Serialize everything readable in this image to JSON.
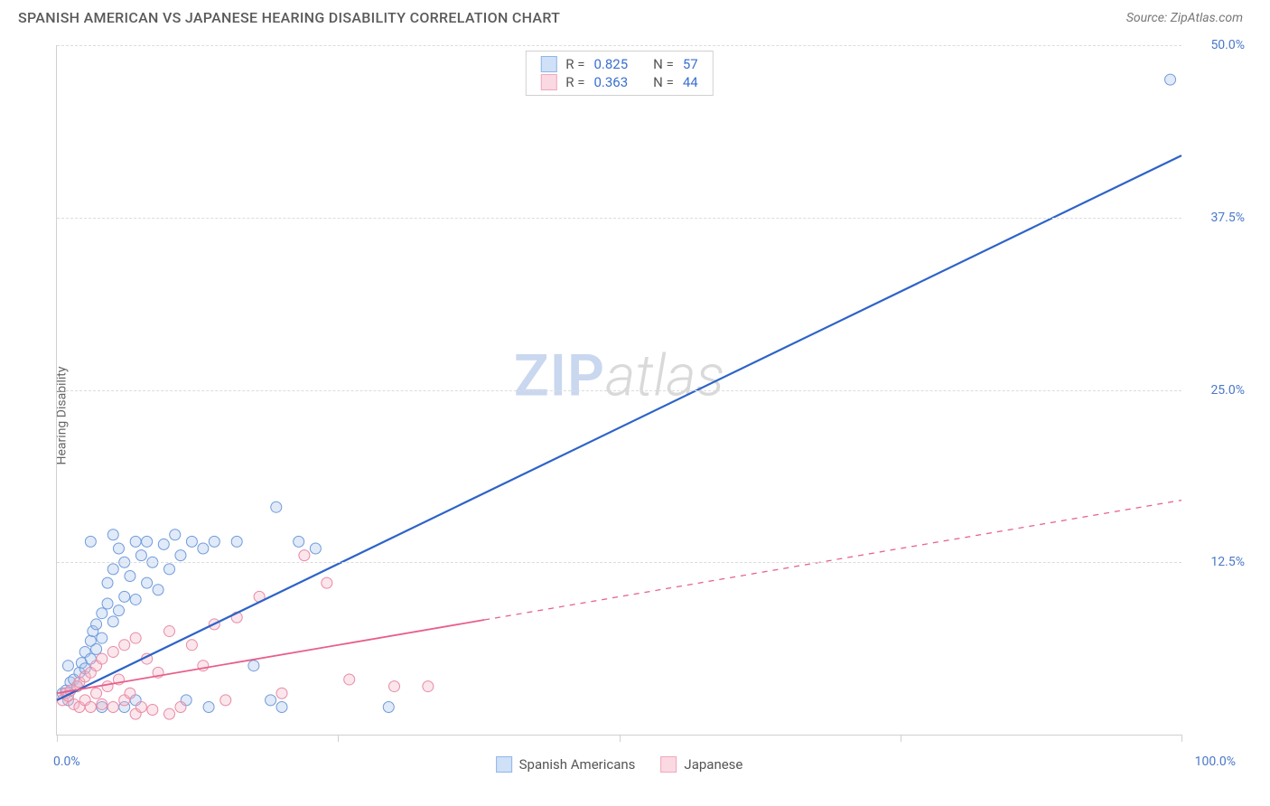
{
  "title": "SPANISH AMERICAN VS JAPANESE HEARING DISABILITY CORRELATION CHART",
  "source_prefix": "Source: ",
  "source_name": "ZipAtlas.com",
  "ylabel": "Hearing Disability",
  "watermark_zip": "ZIP",
  "watermark_atlas": "atlas",
  "chart": {
    "type": "scatter",
    "xlim": [
      0,
      100
    ],
    "ylim": [
      0,
      50
    ],
    "y_ticks": [
      12.5,
      25.0,
      37.5,
      50.0
    ],
    "y_tick_labels": [
      "12.5%",
      "25.0%",
      "37.5%",
      "50.0%"
    ],
    "x_ticks": [
      0,
      25,
      50,
      75,
      100
    ],
    "x_min_label": "0.0%",
    "x_max_label": "100.0%",
    "background_color": "#ffffff",
    "grid_color": "#dcdcdc",
    "axis_color": "#d0d0d0",
    "tick_label_color": "#4a78c8",
    "marker_radius": 6,
    "marker_stroke_width": 1,
    "marker_fill_opacity": 0.35,
    "series": [
      {
        "name": "Spanish Americans",
        "color_fill": "#a9c4ec",
        "color_stroke": "#6f9bdc",
        "swatch_fill": "#cfe0f7",
        "swatch_border": "#8fb5e8",
        "R": "0.825",
        "N": "57",
        "regression": {
          "x1": 0,
          "y1": 2.5,
          "x2": 100,
          "y2": 42.0,
          "solid_to_x": 100,
          "stroke": "#2d63c8",
          "width": 2.2
        },
        "points": [
          [
            0.5,
            3.0
          ],
          [
            0.8,
            3.2
          ],
          [
            1.0,
            2.5
          ],
          [
            1.2,
            3.8
          ],
          [
            1.5,
            4.0
          ],
          [
            1.8,
            3.5
          ],
          [
            1.0,
            5.0
          ],
          [
            2.0,
            4.5
          ],
          [
            2.2,
            5.2
          ],
          [
            2.5,
            4.8
          ],
          [
            2.5,
            6.0
          ],
          [
            3.0,
            5.5
          ],
          [
            3.0,
            6.8
          ],
          [
            3.2,
            7.5
          ],
          [
            3.5,
            6.2
          ],
          [
            3.5,
            8.0
          ],
          [
            4.0,
            7.0
          ],
          [
            4.0,
            8.8
          ],
          [
            4.5,
            9.5
          ],
          [
            4.5,
            11.0
          ],
          [
            5.0,
            8.2
          ],
          [
            5.0,
            12.0
          ],
          [
            5.5,
            9.0
          ],
          [
            5.5,
            13.5
          ],
          [
            6.0,
            10.0
          ],
          [
            6.0,
            12.5
          ],
          [
            6.5,
            11.5
          ],
          [
            7.0,
            9.8
          ],
          [
            7.0,
            14.0
          ],
          [
            7.5,
            13.0
          ],
          [
            8.0,
            11.0
          ],
          [
            8.5,
            12.5
          ],
          [
            9.0,
            10.5
          ],
          [
            9.5,
            13.8
          ],
          [
            10.0,
            12.0
          ],
          [
            10.5,
            14.5
          ],
          [
            11.0,
            13.0
          ],
          [
            12.0,
            14.0
          ],
          [
            13.0,
            13.5
          ],
          [
            14.0,
            14.0
          ],
          [
            3.0,
            14.0
          ],
          [
            5.0,
            14.5
          ],
          [
            8.0,
            14.0
          ],
          [
            16.0,
            14.0
          ],
          [
            17.5,
            5.0
          ],
          [
            19.0,
            2.5
          ],
          [
            19.5,
            16.5
          ],
          [
            20.0,
            2.0
          ],
          [
            21.5,
            14.0
          ],
          [
            23.0,
            13.5
          ],
          [
            29.5,
            2.0
          ],
          [
            11.5,
            2.5
          ],
          [
            13.5,
            2.0
          ],
          [
            7.0,
            2.5
          ],
          [
            6.0,
            2.0
          ],
          [
            99.0,
            47.5
          ],
          [
            4.0,
            2.0
          ]
        ]
      },
      {
        "name": "Japanese",
        "color_fill": "#f4b8c8",
        "color_stroke": "#e88aa5",
        "swatch_fill": "#fbd9e2",
        "swatch_border": "#f0a7bc",
        "R": "0.363",
        "N": "44",
        "regression": {
          "x1": 0,
          "y1": 3.0,
          "x2": 100,
          "y2": 17.0,
          "solid_to_x": 38,
          "stroke": "#e75f8a",
          "width": 1.8
        },
        "points": [
          [
            0.5,
            2.5
          ],
          [
            0.8,
            3.0
          ],
          [
            1.0,
            2.8
          ],
          [
            1.2,
            3.2
          ],
          [
            1.5,
            2.2
          ],
          [
            1.8,
            3.5
          ],
          [
            2.0,
            2.0
          ],
          [
            2.0,
            3.8
          ],
          [
            2.5,
            2.5
          ],
          [
            2.5,
            4.2
          ],
          [
            3.0,
            2.0
          ],
          [
            3.0,
            4.5
          ],
          [
            3.5,
            3.0
          ],
          [
            3.5,
            5.0
          ],
          [
            4.0,
            2.2
          ],
          [
            4.0,
            5.5
          ],
          [
            4.5,
            3.5
          ],
          [
            5.0,
            2.0
          ],
          [
            5.0,
            6.0
          ],
          [
            5.5,
            4.0
          ],
          [
            6.0,
            2.5
          ],
          [
            6.0,
            6.5
          ],
          [
            6.5,
            3.0
          ],
          [
            7.0,
            1.5
          ],
          [
            7.0,
            7.0
          ],
          [
            7.5,
            2.0
          ],
          [
            8.0,
            5.5
          ],
          [
            8.5,
            1.8
          ],
          [
            9.0,
            4.5
          ],
          [
            10.0,
            1.5
          ],
          [
            10.0,
            7.5
          ],
          [
            11.0,
            2.0
          ],
          [
            12.0,
            6.5
          ],
          [
            13.0,
            5.0
          ],
          [
            14.0,
            8.0
          ],
          [
            15.0,
            2.5
          ],
          [
            16.0,
            8.5
          ],
          [
            18.0,
            10.0
          ],
          [
            20.0,
            3.0
          ],
          [
            22.0,
            13.0
          ],
          [
            24.0,
            11.0
          ],
          [
            26.0,
            4.0
          ],
          [
            30.0,
            3.5
          ],
          [
            33.0,
            3.5
          ]
        ]
      }
    ],
    "stats_legend": {
      "R_label": "R =",
      "N_label": "N ="
    }
  }
}
